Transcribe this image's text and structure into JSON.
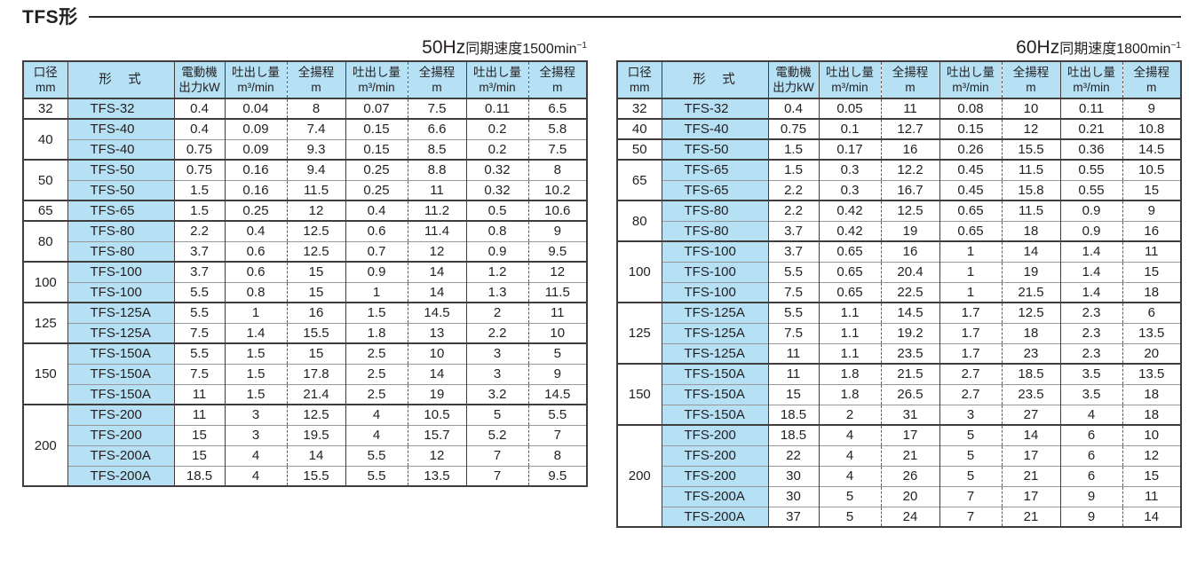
{
  "title": "TFS形",
  "colors": {
    "header_bg": "#b6e0f4",
    "border_dark": "#413d3c",
    "border_light": "#989898",
    "text": "#231f20"
  },
  "columns": {
    "bore_l1": "口径",
    "bore_l2": "mm",
    "model": "形　式",
    "motor_l1": "電動機",
    "motor_l2": "出力kW",
    "discharge_l1": "吐出し量",
    "discharge_l2": "m³/min",
    "head_l1": "全揚程",
    "head_l2": "m"
  },
  "tables": [
    {
      "id": "50hz",
      "label_big": "50Hz",
      "label_small": "同期速度1500min",
      "label_sup": "−1",
      "groups": [
        {
          "bore": "32",
          "rows": [
            [
              "TFS-32",
              "0.4",
              "0.04",
              "8",
              "0.07",
              "7.5",
              "0.11",
              "6.5"
            ]
          ]
        },
        {
          "bore": "40",
          "rows": [
            [
              "TFS-40",
              "0.4",
              "0.09",
              "7.4",
              "0.15",
              "6.6",
              "0.2",
              "5.8"
            ],
            [
              "TFS-40",
              "0.75",
              "0.09",
              "9.3",
              "0.15",
              "8.5",
              "0.2",
              "7.5"
            ]
          ]
        },
        {
          "bore": "50",
          "rows": [
            [
              "TFS-50",
              "0.75",
              "0.16",
              "9.4",
              "0.25",
              "8.8",
              "0.32",
              "8"
            ],
            [
              "TFS-50",
              "1.5",
              "0.16",
              "11.5",
              "0.25",
              "11",
              "0.32",
              "10.2"
            ]
          ]
        },
        {
          "bore": "65",
          "rows": [
            [
              "TFS-65",
              "1.5",
              "0.25",
              "12",
              "0.4",
              "11.2",
              "0.5",
              "10.6"
            ]
          ]
        },
        {
          "bore": "80",
          "rows": [
            [
              "TFS-80",
              "2.2",
              "0.4",
              "12.5",
              "0.6",
              "11.4",
              "0.8",
              "9"
            ],
            [
              "TFS-80",
              "3.7",
              "0.6",
              "12.5",
              "0.7",
              "12",
              "0.9",
              "9.5"
            ]
          ]
        },
        {
          "bore": "100",
          "rows": [
            [
              "TFS-100",
              "3.7",
              "0.6",
              "15",
              "0.9",
              "14",
              "1.2",
              "12"
            ],
            [
              "TFS-100",
              "5.5",
              "0.8",
              "15",
              "1",
              "14",
              "1.3",
              "11.5"
            ]
          ]
        },
        {
          "bore": "125",
          "rows": [
            [
              "TFS-125A",
              "5.5",
              "1",
              "16",
              "1.5",
              "14.5",
              "2",
              "11"
            ],
            [
              "TFS-125A",
              "7.5",
              "1.4",
              "15.5",
              "1.8",
              "13",
              "2.2",
              "10"
            ]
          ]
        },
        {
          "bore": "150",
          "rows": [
            [
              "TFS-150A",
              "5.5",
              "1.5",
              "15",
              "2.5",
              "10",
              "3",
              "5"
            ],
            [
              "TFS-150A",
              "7.5",
              "1.5",
              "17.8",
              "2.5",
              "14",
              "3",
              "9"
            ],
            [
              "TFS-150A",
              "11",
              "1.5",
              "21.4",
              "2.5",
              "19",
              "3.2",
              "14.5"
            ]
          ]
        },
        {
          "bore": "200",
          "rows": [
            [
              "TFS-200",
              "11",
              "3",
              "12.5",
              "4",
              "10.5",
              "5",
              "5.5"
            ],
            [
              "TFS-200",
              "15",
              "3",
              "19.5",
              "4",
              "15.7",
              "5.2",
              "7"
            ],
            [
              "TFS-200A",
              "15",
              "4",
              "14",
              "5.5",
              "12",
              "7",
              "8"
            ],
            [
              "TFS-200A",
              "18.5",
              "4",
              "15.5",
              "5.5",
              "13.5",
              "7",
              "9.5"
            ]
          ]
        }
      ]
    },
    {
      "id": "60hz",
      "label_big": "60Hz",
      "label_small": "同期速度1800min",
      "label_sup": "−1",
      "groups": [
        {
          "bore": "32",
          "rows": [
            [
              "TFS-32",
              "0.4",
              "0.05",
              "11",
              "0.08",
              "10",
              "0.11",
              "9"
            ]
          ]
        },
        {
          "bore": "40",
          "rows": [
            [
              "TFS-40",
              "0.75",
              "0.1",
              "12.7",
              "0.15",
              "12",
              "0.21",
              "10.8"
            ]
          ]
        },
        {
          "bore": "50",
          "rows": [
            [
              "TFS-50",
              "1.5",
              "0.17",
              "16",
              "0.26",
              "15.5",
              "0.36",
              "14.5"
            ]
          ]
        },
        {
          "bore": "65",
          "rows": [
            [
              "TFS-65",
              "1.5",
              "0.3",
              "12.2",
              "0.45",
              "11.5",
              "0.55",
              "10.5"
            ],
            [
              "TFS-65",
              "2.2",
              "0.3",
              "16.7",
              "0.45",
              "15.8",
              "0.55",
              "15"
            ]
          ]
        },
        {
          "bore": "80",
          "rows": [
            [
              "TFS-80",
              "2.2",
              "0.42",
              "12.5",
              "0.65",
              "11.5",
              "0.9",
              "9"
            ],
            [
              "TFS-80",
              "3.7",
              "0.42",
              "19",
              "0.65",
              "18",
              "0.9",
              "16"
            ]
          ]
        },
        {
          "bore": "100",
          "rows": [
            [
              "TFS-100",
              "3.7",
              "0.65",
              "16",
              "1",
              "14",
              "1.4",
              "11"
            ],
            [
              "TFS-100",
              "5.5",
              "0.65",
              "20.4",
              "1",
              "19",
              "1.4",
              "15"
            ],
            [
              "TFS-100",
              "7.5",
              "0.65",
              "22.5",
              "1",
              "21.5",
              "1.4",
              "18"
            ]
          ]
        },
        {
          "bore": "125",
          "rows": [
            [
              "TFS-125A",
              "5.5",
              "1.1",
              "14.5",
              "1.7",
              "12.5",
              "2.3",
              "6"
            ],
            [
              "TFS-125A",
              "7.5",
              "1.1",
              "19.2",
              "1.7",
              "18",
              "2.3",
              "13.5"
            ],
            [
              "TFS-125A",
              "11",
              "1.1",
              "23.5",
              "1.7",
              "23",
              "2.3",
              "20"
            ]
          ]
        },
        {
          "bore": "150",
          "rows": [
            [
              "TFS-150A",
              "11",
              "1.8",
              "21.5",
              "2.7",
              "18.5",
              "3.5",
              "13.5"
            ],
            [
              "TFS-150A",
              "15",
              "1.8",
              "26.5",
              "2.7",
              "23.5",
              "3.5",
              "18"
            ],
            [
              "TFS-150A",
              "18.5",
              "2",
              "31",
              "3",
              "27",
              "4",
              "18"
            ]
          ]
        },
        {
          "bore": "200",
          "rows": [
            [
              "TFS-200",
              "18.5",
              "4",
              "17",
              "5",
              "14",
              "6",
              "10"
            ],
            [
              "TFS-200",
              "22",
              "4",
              "21",
              "5",
              "17",
              "6",
              "12"
            ],
            [
              "TFS-200",
              "30",
              "4",
              "26",
              "5",
              "21",
              "6",
              "15"
            ],
            [
              "TFS-200A",
              "30",
              "5",
              "20",
              "7",
              "17",
              "9",
              "11"
            ],
            [
              "TFS-200A",
              "37",
              "5",
              "24",
              "7",
              "21",
              "9",
              "14"
            ]
          ]
        }
      ]
    }
  ]
}
